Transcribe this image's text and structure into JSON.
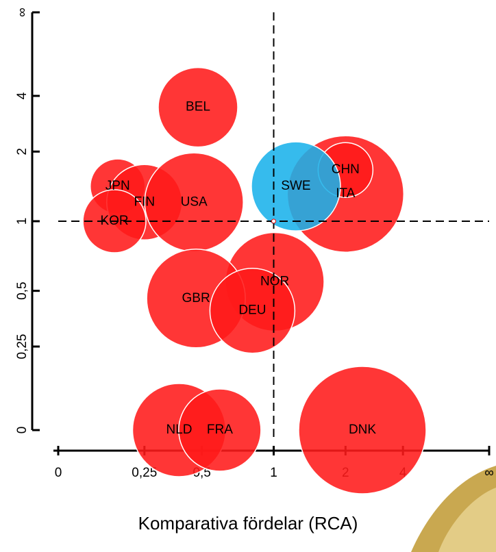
{
  "chart_data": {
    "type": "bubble",
    "scale": "ratio",
    "x_label": "Komparativa fördelar (RCA)",
    "xlim": [
      0,
      "Infinity"
    ],
    "ylim": [
      0,
      "Infinity"
    ],
    "xticks": [
      0,
      {
        "value": 0.25,
        "label": "0,25"
      },
      {
        "value": 0.5,
        "label": "0,5"
      },
      1,
      2,
      4,
      {
        "value": "Infinity",
        "label": "∞"
      }
    ],
    "yticks": [
      0,
      {
        "value": 0.25,
        "label": "0,25"
      },
      {
        "value": 0.5,
        "label": "0,5"
      },
      1,
      2,
      4,
      {
        "value": "Infinity",
        "label": "∞"
      }
    ],
    "ref_x": 1,
    "ref_y": 1,
    "labels": [
      "BEL",
      "JPN",
      "FIN",
      "KOR",
      "USA",
      "ITA",
      "CHN",
      "SWE",
      "NOR",
      "GBR",
      "DEU",
      "NLD",
      "FRA",
      "DNK"
    ],
    "x": [
      0.48,
      0.16,
      0.25,
      0.15,
      0.46,
      2.0,
      2.0,
      1.23,
      1.01,
      0.47,
      0.82,
      0.39,
      0.6,
      2.4
    ],
    "y": [
      3.4,
      1.4,
      1.2,
      1.0,
      1.2,
      1.3,
      1.65,
      1.4,
      0.55,
      0.46,
      0.4,
      0,
      0,
      0
    ],
    "sizes": [
      58,
      40,
      55,
      46,
      72,
      85,
      40,
      65,
      72,
      72,
      62,
      68,
      60,
      93
    ],
    "colors": [
      "#ff1a1a",
      "#ff1a1a",
      "#ff1a1a",
      "#ff1a1a",
      "#ff1a1a",
      "#ff1a1a",
      "#ff1a1a",
      "#1ab2ea",
      "#ff1a1a",
      "#ff1a1a",
      "#ff1a1a",
      "#ff1a1a",
      "#ff1a1a",
      "#ff1a1a"
    ]
  }
}
